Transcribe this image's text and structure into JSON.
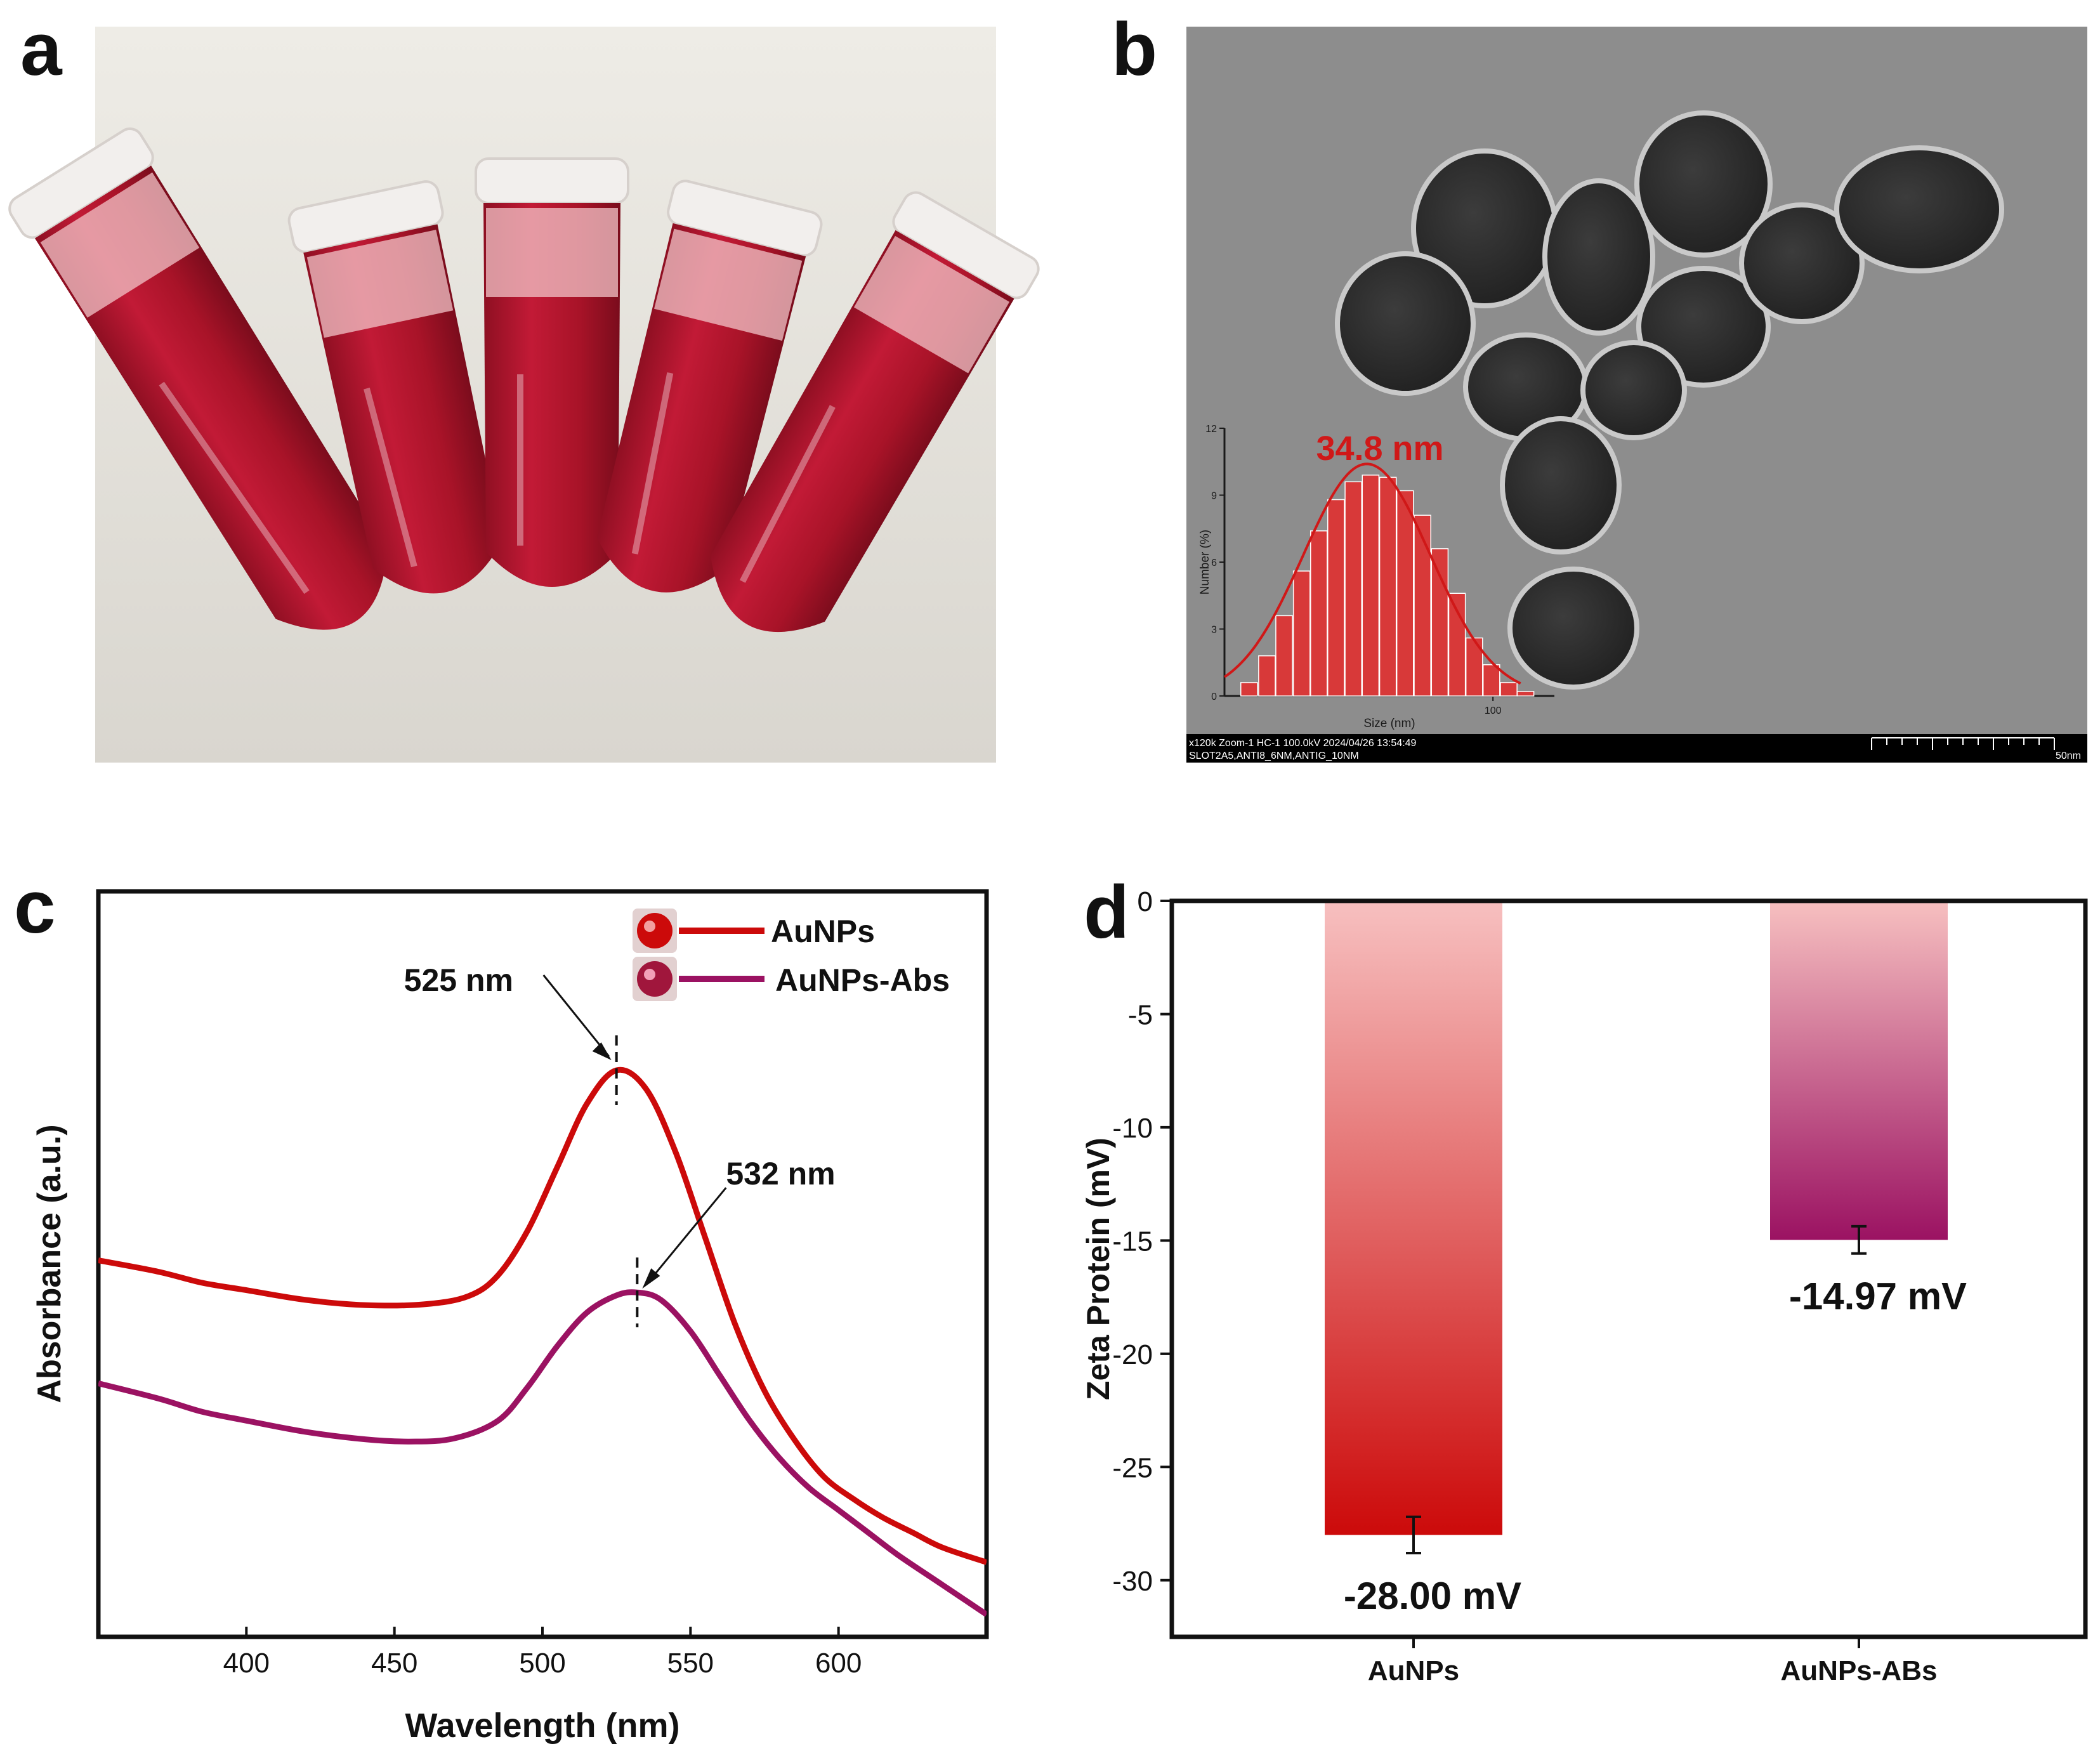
{
  "panels": {
    "a": {
      "label": "a"
    },
    "b": {
      "label": "b"
    },
    "c": {
      "label": "c"
    },
    "d": {
      "label": "d"
    }
  },
  "tem": {
    "info_line1": "x120k Zoom-1 HC-1 100.0kV 2024/04/26 13:54:49",
    "info_line2": "SLOT2A5,ANTI8_6NM,ANTIG_10NM",
    "scale_label": "50nm"
  },
  "colors": {
    "aunps": "#cc0a0a",
    "aunps_abs": "#9b1262",
    "bar_top": "#f7c0c0",
    "bar_aunps_bottom": "#cc0a0a",
    "bar_abs_bottom": "#9b1262",
    "hist_bar": "#e03030",
    "fit_line": "#d01818",
    "tube_liquid": "#b0142c",
    "tem_background": "#8d8d8d",
    "particle": "#2a2a2a"
  },
  "chart_data": [
    {
      "id": "b-inset",
      "type": "bar",
      "title": "34.8 nm",
      "xlabel": "Size (nm)",
      "ylabel": "Number (%)",
      "x_scale": "log",
      "xlim": [
        17,
        150
      ],
      "ylim": [
        0,
        12
      ],
      "yticks": [
        0,
        3,
        6,
        9,
        12
      ],
      "xtick_labels": [
        "100"
      ],
      "x": [
        20,
        22.5,
        25.2,
        28.3,
        31.7,
        35.5,
        39.8,
        44.6,
        50,
        56,
        62.8,
        70.4,
        78.9,
        88.4,
        99,
        111,
        124
      ],
      "values": [
        0.6,
        1.8,
        3.6,
        5.6,
        7.4,
        8.8,
        9.6,
        9.9,
        9.8,
        9.2,
        8.1,
        6.6,
        4.6,
        2.6,
        1.4,
        0.6,
        0.2
      ],
      "fit_mean": 34.8,
      "fit_peak": 10.4
    },
    {
      "id": "c",
      "type": "line",
      "xlabel": "Wavelength (nm)",
      "ylabel": "Absorbance (a.u.)",
      "xlim": [
        350,
        650
      ],
      "ylim": [
        0,
        1
      ],
      "xticks": [
        400,
        450,
        500,
        550,
        600
      ],
      "series": [
        {
          "name": "AuNPs",
          "x": [
            350,
            370,
            385,
            400,
            420,
            440,
            460,
            475,
            485,
            495,
            505,
            515,
            525,
            535,
            545,
            555,
            565,
            575,
            585,
            595,
            605,
            615,
            625,
            635,
            650
          ],
          "y": [
            0.505,
            0.49,
            0.475,
            0.465,
            0.452,
            0.445,
            0.446,
            0.457,
            0.485,
            0.545,
            0.63,
            0.715,
            0.76,
            0.735,
            0.65,
            0.535,
            0.42,
            0.33,
            0.265,
            0.215,
            0.185,
            0.16,
            0.14,
            0.12,
            0.1
          ]
        },
        {
          "name": "AuNPs-Abs",
          "x": [
            350,
            370,
            385,
            400,
            420,
            440,
            455,
            470,
            485,
            495,
            505,
            515,
            525,
            532,
            540,
            550,
            560,
            570,
            580,
            590,
            600,
            610,
            620,
            635,
            650
          ],
          "y": [
            0.34,
            0.32,
            0.302,
            0.29,
            0.275,
            0.265,
            0.262,
            0.266,
            0.29,
            0.335,
            0.39,
            0.435,
            0.458,
            0.462,
            0.452,
            0.41,
            0.35,
            0.29,
            0.24,
            0.2,
            0.17,
            0.14,
            0.11,
            0.07,
            0.03
          ]
        }
      ],
      "annotations": [
        {
          "text": "525 nm",
          "x": 525
        },
        {
          "text": "532 nm",
          "x": 532
        }
      ],
      "legend": "top-right"
    },
    {
      "id": "d",
      "type": "bar",
      "xlabel": "",
      "ylabel": "Zeta Protein (mV)",
      "ylim": [
        -32.5,
        0
      ],
      "yticks": [
        0,
        -5,
        -10,
        -15,
        -20,
        -25,
        -30
      ],
      "categories": [
        "AuNPs",
        "AuNPs-ABs"
      ],
      "values": [
        -28.0,
        -14.97
      ],
      "errors": [
        0.8,
        0.6
      ],
      "data_labels": [
        "-28.00 mV",
        "-14.97 mV"
      ]
    }
  ]
}
